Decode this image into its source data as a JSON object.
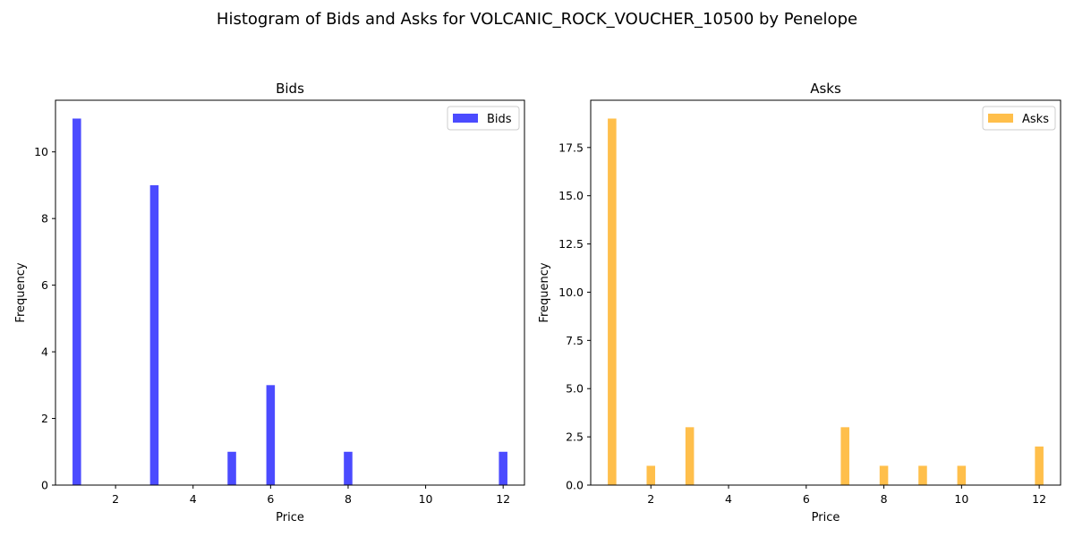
{
  "suptitle": "Histogram of Bids and Asks for VOLCANIC_ROCK_VOUCHER_10500 by Penelope",
  "chart_data": [
    {
      "type": "bar",
      "title": "Bids",
      "xlabel": "Price",
      "ylabel": "Frequency",
      "color": "#4b4bff",
      "xlim": [
        0.45,
        12.55
      ],
      "ylim": [
        0,
        11.55
      ],
      "xticks": [
        2,
        4,
        6,
        8,
        10,
        12
      ],
      "yticks": [
        0,
        2,
        4,
        6,
        8,
        10
      ],
      "ytick_format": "int",
      "bin_width": 0.22,
      "legend": {
        "label": "Bids",
        "position": "top-right"
      },
      "bars": [
        {
          "x": 1,
          "y": 11
        },
        {
          "x": 3,
          "y": 9
        },
        {
          "x": 5,
          "y": 1
        },
        {
          "x": 6,
          "y": 3
        },
        {
          "x": 8,
          "y": 1
        },
        {
          "x": 12,
          "y": 1
        }
      ]
    },
    {
      "type": "bar",
      "title": "Asks",
      "xlabel": "Price",
      "ylabel": "Frequency",
      "color": "#ffbf4b",
      "xlim": [
        0.45,
        12.55
      ],
      "ylim": [
        0,
        19.95
      ],
      "xticks": [
        2,
        4,
        6,
        8,
        10,
        12
      ],
      "yticks": [
        0,
        2.5,
        5,
        7.5,
        10,
        12.5,
        15,
        17.5
      ],
      "ytick_format": "one-decimal",
      "bin_width": 0.22,
      "legend": {
        "label": "Asks",
        "position": "top-right"
      },
      "bars": [
        {
          "x": 1,
          "y": 19
        },
        {
          "x": 2,
          "y": 1
        },
        {
          "x": 3,
          "y": 3
        },
        {
          "x": 7,
          "y": 3
        },
        {
          "x": 8,
          "y": 1
        },
        {
          "x": 9,
          "y": 1
        },
        {
          "x": 10,
          "y": 1
        },
        {
          "x": 12,
          "y": 2
        }
      ]
    }
  ]
}
